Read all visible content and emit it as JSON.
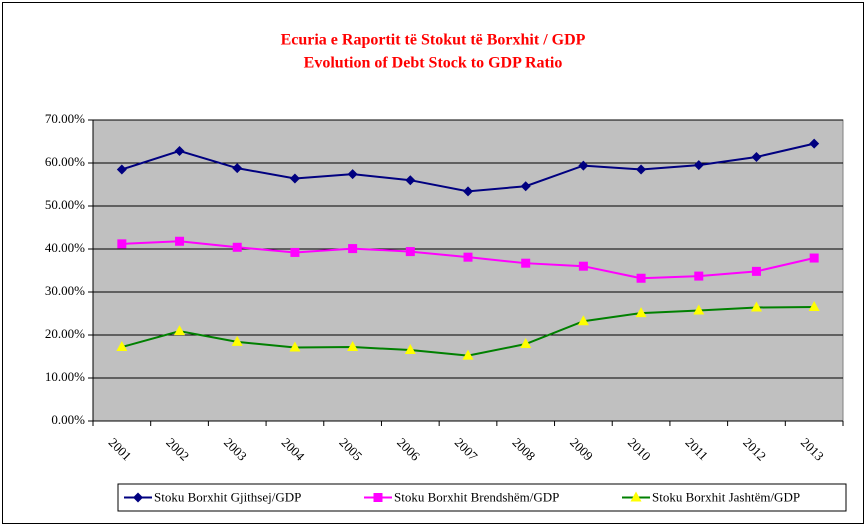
{
  "chart_data": {
    "type": "line",
    "title": "Ecuria e Raportit të Stokut të Borxhit / GDP",
    "subtitle": "Evolution of Debt Stock to GDP Ratio",
    "categories": [
      "2001",
      "2002",
      "2003",
      "2004",
      "2005",
      "2006",
      "2007",
      "2008",
      "2009",
      "2010",
      "2011",
      "2012",
      "2013"
    ],
    "series": [
      {
        "name": "Stoku Borxhit Gjithsej/GDP",
        "color": "#000080",
        "marker": "diamond",
        "marker_color": "#000080",
        "values": [
          58.5,
          62.8,
          58.8,
          56.4,
          57.4,
          56.0,
          53.4,
          54.6,
          59.4,
          58.5,
          59.5,
          61.4,
          64.5
        ]
      },
      {
        "name": "Stoku Borxhit Brendshëm/GDP",
        "color": "#ff00ff",
        "marker": "square",
        "marker_color": "#ff00ff",
        "values": [
          41.2,
          41.8,
          40.4,
          39.2,
          40.1,
          39.4,
          38.1,
          36.7,
          36.0,
          33.2,
          33.7,
          34.8,
          37.9
        ]
      },
      {
        "name": "Stoku Borxhit Jashtëm/GDP",
        "color": "#008000",
        "marker": "triangle",
        "marker_color": "#ffff00",
        "values": [
          17.2,
          20.9,
          18.4,
          17.1,
          17.2,
          16.5,
          15.2,
          17.9,
          23.2,
          25.1,
          25.7,
          26.4,
          26.5
        ]
      }
    ],
    "ylim": [
      0,
      70
    ],
    "yticks": [
      {
        "value": 0,
        "label": "0.00%"
      },
      {
        "value": 10,
        "label": "10.00%"
      },
      {
        "value": 20,
        "label": "20.00%"
      },
      {
        "value": 30,
        "label": "30.00%"
      },
      {
        "value": 40,
        "label": "40.00%"
      },
      {
        "value": 50,
        "label": "50.00%"
      },
      {
        "value": 60,
        "label": "60.00%"
      },
      {
        "value": 70,
        "label": "70.00%"
      }
    ],
    "grid": true,
    "legend": "bottom",
    "plot_background": "#c0c0c0"
  }
}
